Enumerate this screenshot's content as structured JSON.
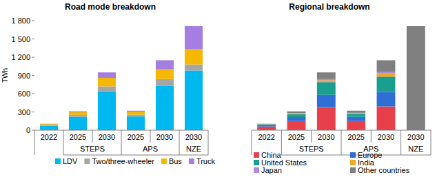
{
  "chart_data": [
    {
      "type": "bar",
      "title": "Road mode breakdown",
      "y_label": "TWh",
      "stacked": true,
      "legend": "bottom",
      "categories": [
        "2022",
        "2025",
        "2030",
        "2025",
        "2030",
        "2030"
      ],
      "group_labels": [
        null,
        "STEPS",
        "STEPS",
        "APS",
        "APS",
        "NZE"
      ],
      "ylim": [
        0,
        1800
      ],
      "yticks": [
        0,
        300,
        600,
        900,
        {
          "value": 1200,
          "label": "1 200"
        },
        {
          "value": 1500,
          "label": "1 500"
        },
        {
          "value": 1800,
          "label": "1 800"
        }
      ],
      "series": [
        {
          "name": "LDV",
          "color": "#00b8f0",
          "values": [
            70,
            220,
            640,
            225,
            730,
            980
          ]
        },
        {
          "name": "Two/three-wheeler",
          "color": "#a6a6a6",
          "values": [
            15,
            30,
            80,
            30,
            110,
            100
          ]
        },
        {
          "name": "Bus",
          "color": "#f5b800",
          "values": [
            15,
            45,
            140,
            50,
            160,
            250
          ]
        },
        {
          "name": "Truck",
          "color": "#a47fe0",
          "values": [
            5,
            15,
            90,
            15,
            150,
            380
          ]
        }
      ]
    },
    {
      "type": "bar",
      "title": "Regional breakdown",
      "stacked": true,
      "legend": "bottom",
      "tick_labels": "x",
      "categories": [
        "2022",
        "2025",
        "2030",
        "2025",
        "2030",
        "2030"
      ],
      "group_labels": [
        null,
        "STEPS",
        "STEPS",
        "APS",
        "APS",
        "NZE"
      ],
      "ylim": [
        0,
        1800
      ],
      "series": [
        {
          "name": "China",
          "color": "#e8404a",
          "values": [
            60,
            150,
            380,
            150,
            390,
            null
          ]
        },
        {
          "name": "Europe",
          "color": "#2f6fd5",
          "values": [
            20,
            65,
            200,
            70,
            240,
            null
          ]
        },
        {
          "name": "United States",
          "color": "#1a9e8f",
          "values": [
            15,
            50,
            210,
            50,
            250,
            null
          ]
        },
        {
          "name": "India",
          "color": "#f5a623",
          "values": [
            2,
            10,
            30,
            10,
            50,
            null
          ]
        },
        {
          "name": "Japan",
          "color": "#b08ae0",
          "values": [
            2,
            5,
            20,
            5,
            30,
            null
          ]
        },
        {
          "name": "Other countries",
          "color": "#808080",
          "values": [
            6,
            30,
            110,
            35,
            190,
            1710
          ]
        }
      ]
    }
  ]
}
